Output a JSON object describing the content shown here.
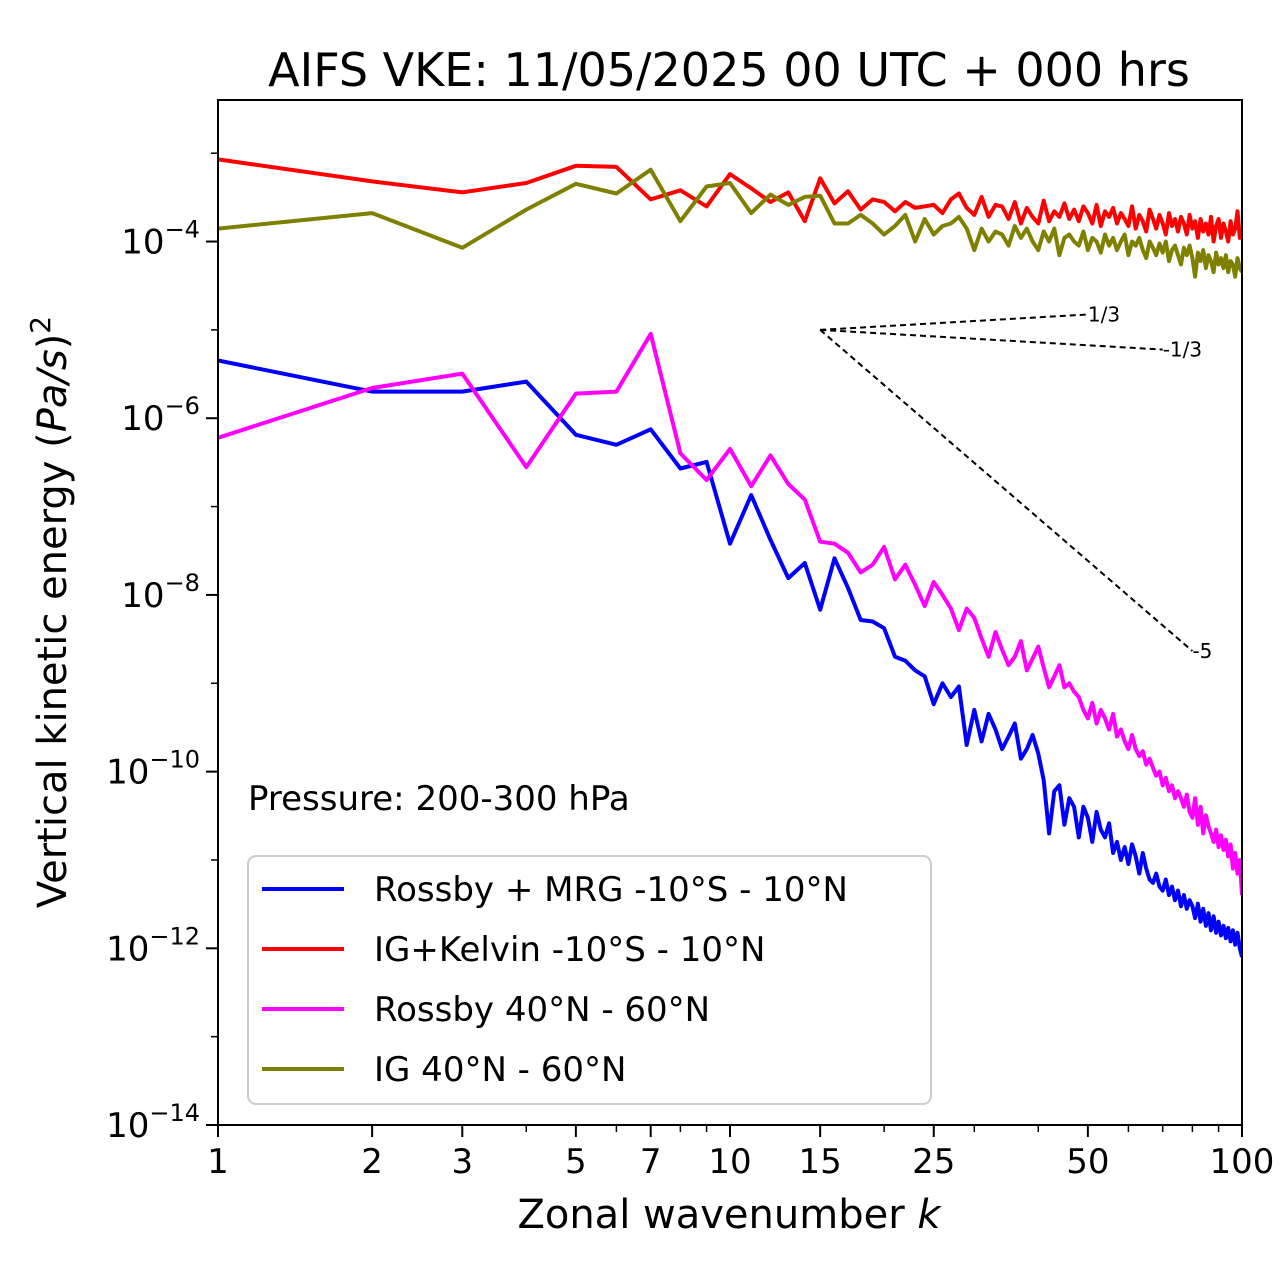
{
  "chart_data": {
    "type": "line",
    "title": "AIFS VKE: 11/05/2025 00 UTC + 000 hrs",
    "xlabel": "Zonal wavenumber ",
    "xlabel_italic": "k",
    "ylabel": "Vertical kinetic energy (",
    "ylabel_italic": "Pa/s",
    "ylabel_end": ")",
    "ylabel_power": "2",
    "x_scale": "log",
    "y_scale": "log",
    "xlim": [
      1,
      100
    ],
    "ylim": [
      1e-14,
      0.004
    ],
    "x_ticks": [
      {
        "value": 1,
        "label": "1"
      },
      {
        "value": 2,
        "label": "2"
      },
      {
        "value": 3,
        "label": "3"
      },
      {
        "value": 5,
        "label": "5"
      },
      {
        "value": 7,
        "label": "7"
      },
      {
        "value": 10,
        "label": "10"
      },
      {
        "value": 15,
        "label": "15"
      },
      {
        "value": 25,
        "label": "25"
      },
      {
        "value": 50,
        "label": "50"
      },
      {
        "value": 100,
        "label": "100"
      }
    ],
    "y_ticks": [
      {
        "exp": -4,
        "base": "10",
        "power": "−4"
      },
      {
        "exp": -6,
        "base": "10",
        "power": "−6"
      },
      {
        "exp": -8,
        "base": "10",
        "power": "−8"
      },
      {
        "exp": -10,
        "base": "10",
        "power": "−10"
      },
      {
        "exp": -12,
        "base": "10",
        "power": "−12"
      },
      {
        "exp": -14,
        "base": "10",
        "power": "−14"
      }
    ],
    "annotation": "Pressure: 200-300 hPa",
    "grid": false,
    "legend_position": "lower-left",
    "series": [
      {
        "name": "Rossby + MRG -10°S - 10°N",
        "color": "#0000ff",
        "x": [
          1,
          2,
          3,
          4,
          5,
          6,
          7,
          8,
          9,
          10,
          11,
          12,
          13,
          14,
          15,
          16,
          17,
          18,
          19,
          20,
          21,
          22,
          23,
          24,
          25,
          26,
          27,
          28,
          29,
          30,
          31,
          32,
          33,
          34,
          35,
          36,
          37,
          38,
          39,
          40,
          41,
          42,
          43,
          44,
          45,
          46,
          47,
          48,
          49,
          50,
          51,
          52,
          53,
          54,
          55,
          56,
          57,
          58,
          59,
          60,
          61,
          62,
          63,
          64,
          65,
          66,
          67,
          68,
          69,
          70,
          71,
          72,
          73,
          74,
          75,
          76,
          77,
          78,
          79,
          80,
          81,
          82,
          83,
          84,
          85,
          86,
          87,
          88,
          89,
          90,
          91,
          92,
          93,
          94,
          95,
          96,
          97,
          98,
          99,
          100
        ],
        "y": [
          4.5e-06,
          2e-06,
          2e-06,
          2.6e-06,
          6.5e-07,
          5e-07,
          7.5e-07,
          2.7e-07,
          3.2e-07,
          3.8e-08,
          1.35e-07,
          4.2e-08,
          1.55e-08,
          2.3e-08,
          6.8e-09,
          2.6e-08,
          1.2e-08,
          5.2e-09,
          5e-09,
          4.2e-09,
          2e-09,
          1.8e-09,
          1.4e-09,
          1.2e-09,
          5.8e-10,
          1e-09,
          7e-10,
          9.2e-10,
          2e-10,
          5e-10,
          2.2e-10,
          4.5e-10,
          3e-10,
          1.8e-10,
          2.5e-10,
          3.5e-10,
          1.4e-10,
          1.8e-10,
          2.6e-10,
          1.6e-10,
          8e-11,
          2e-11,
          6e-11,
          7e-11,
          2.5e-11,
          5e-11,
          4e-11,
          1.8e-11,
          4e-11,
          3e-11,
          1.6e-11,
          3.5e-11,
          2.2e-11,
          1.8e-11,
          2.6e-11,
          1.2e-11,
          1.6e-11,
          1e-11,
          1.4e-11,
          9e-12,
          1.5e-11,
          1.1e-11,
          7e-12,
          1.2e-11,
          8e-12,
          6e-12,
          5.5e-12,
          7e-12,
          5e-12,
          4.5e-12,
          6e-12,
          4e-12,
          5e-12,
          3.5e-12,
          4.5e-12,
          3e-12,
          4e-12,
          2.8e-12,
          3.5e-12,
          3e-12,
          2.2e-12,
          3.2e-12,
          2e-12,
          2.8e-12,
          1.8e-12,
          2.5e-12,
          1.6e-12,
          2.3e-12,
          1.5e-12,
          2e-12,
          1.4e-12,
          1.8e-12,
          1.3e-12,
          1.7e-12,
          1.2e-12,
          1.6e-12,
          1.1e-12,
          1.5e-12,
          1e-12,
          8e-13
        ]
      },
      {
        "name": "IG+Kelvin -10°S - 10°N",
        "color": "#ff0000",
        "x": [
          1,
          2,
          3,
          4,
          5,
          6,
          7,
          8,
          9,
          10,
          11,
          12,
          13,
          14,
          15,
          16,
          17,
          18,
          19,
          20,
          21,
          22,
          23,
          24,
          25,
          26,
          27,
          28,
          29,
          30,
          31,
          32,
          33,
          34,
          35,
          36,
          37,
          38,
          39,
          40,
          41,
          42,
          43,
          44,
          45,
          46,
          47,
          48,
          49,
          50,
          51,
          52,
          53,
          54,
          55,
          56,
          57,
          58,
          59,
          60,
          61,
          62,
          63,
          64,
          65,
          66,
          67,
          68,
          69,
          70,
          71,
          72,
          73,
          74,
          75,
          76,
          77,
          78,
          79,
          80,
          81,
          82,
          83,
          84,
          85,
          86,
          87,
          88,
          89,
          90,
          91,
          92,
          93,
          94,
          95,
          96,
          97,
          98,
          99,
          100
        ],
        "y": [
          0.00085,
          0.00048,
          0.00036,
          0.00046,
          0.00072,
          0.0007,
          0.0003,
          0.00038,
          0.00025,
          0.00058,
          0.0004,
          0.00028,
          0.00036,
          0.00017,
          0.00052,
          0.00027,
          0.00037,
          0.00023,
          0.0003,
          0.00028,
          0.00022,
          0.00028,
          0.00024,
          0.00025,
          0.00026,
          0.00021,
          0.0003,
          0.00035,
          0.00024,
          0.0002,
          0.00032,
          0.00019,
          0.00026,
          0.00025,
          0.00018,
          0.00028,
          0.00016,
          0.00024,
          0.00019,
          0.00016,
          0.00029,
          0.00017,
          0.00022,
          0.00019,
          0.00027,
          0.00018,
          0.00023,
          0.00017,
          0.00025,
          0.00021,
          0.00016,
          0.00026,
          0.00015,
          0.00022,
          0.00019,
          0.00024,
          0.00016,
          0.00021,
          0.00018,
          0.00015,
          0.00025,
          0.00014,
          0.0002,
          0.00017,
          0.00013,
          0.00023,
          0.00018,
          0.00014,
          0.0002,
          0.00016,
          0.00012,
          0.00021,
          0.00015,
          0.00018,
          0.00013,
          0.00019,
          0.00016,
          0.00012,
          0.0002,
          0.00014,
          0.00017,
          0.00011,
          0.00018,
          0.00013,
          0.00016,
          0.00012,
          0.00019,
          0.0001,
          0.00015,
          0.00018,
          0.00011,
          0.00016,
          0.00013,
          0.0001,
          0.00017,
          0.00012,
          0.00014,
          0.00022,
          0.00011,
          0.00013
        ]
      },
      {
        "name": "Rossby 40°N - 60°N",
        "color": "#ff00ff",
        "x": [
          1,
          2,
          3,
          4,
          5,
          6,
          7,
          8,
          9,
          10,
          11,
          12,
          13,
          14,
          15,
          16,
          17,
          18,
          19,
          20,
          21,
          22,
          23,
          24,
          25,
          26,
          27,
          28,
          29,
          30,
          31,
          32,
          33,
          34,
          35,
          36,
          37,
          38,
          39,
          40,
          41,
          42,
          43,
          44,
          45,
          46,
          47,
          48,
          49,
          50,
          51,
          52,
          53,
          54,
          55,
          56,
          57,
          58,
          59,
          60,
          61,
          62,
          63,
          64,
          65,
          66,
          67,
          68,
          69,
          70,
          71,
          72,
          73,
          74,
          75,
          76,
          77,
          78,
          79,
          80,
          81,
          82,
          83,
          84,
          85,
          86,
          87,
          88,
          89,
          90,
          91,
          92,
          93,
          94,
          95,
          96,
          97,
          98,
          99,
          100
        ],
        "y": [
          6e-07,
          2.2e-06,
          3.2e-06,
          2.8e-07,
          1.9e-06,
          2e-06,
          9e-06,
          4e-07,
          2e-07,
          4.5e-07,
          1.7e-07,
          3.8e-07,
          1.8e-07,
          1.2e-07,
          4e-08,
          3.8e-08,
          3e-08,
          1.8e-08,
          2.2e-08,
          3.5e-08,
          1.5e-08,
          2.2e-08,
          1.3e-08,
          7.5e-09,
          1.4e-08,
          1e-08,
          7e-09,
          4e-09,
          7e-09,
          5.5e-09,
          3.2e-09,
          2e-09,
          3.8e-09,
          2.4e-09,
          1.6e-09,
          2e-09,
          3e-09,
          1.4e-09,
          1.9e-09,
          2.6e-09,
          1.5e-09,
          9e-10,
          1.2e-09,
          1.6e-09,
          9e-10,
          1e-09,
          8e-10,
          7e-10,
          5e-10,
          4e-10,
          6e-10,
          3.5e-10,
          5e-10,
          4e-10,
          3e-10,
          4.5e-10,
          2.5e-10,
          3e-10,
          2.2e-10,
          1.8e-10,
          2.6e-10,
          1.8e-10,
          1.5e-10,
          1.7e-10,
          1.2e-10,
          1.4e-10,
          1.1e-10,
          9e-11,
          1e-10,
          7e-11,
          8.5e-11,
          6e-11,
          7e-11,
          5e-11,
          6e-11,
          5e-11,
          4e-11,
          5.5e-11,
          3.5e-11,
          3e-11,
          5e-11,
          2.5e-11,
          4e-11,
          2e-11,
          3.2e-11,
          2.4e-11,
          2e-11,
          1.6e-11,
          2.2e-11,
          1.4e-11,
          1.9e-11,
          1.3e-11,
          1.7e-11,
          1.1e-11,
          1.5e-11,
          8e-12,
          1.2e-11,
          7e-12,
          1e-11,
          4e-12
        ]
      },
      {
        "name": "IG 40°N - 60°N",
        "color": "#808000",
        "x": [
          1,
          2,
          3,
          4,
          5,
          6,
          7,
          8,
          9,
          10,
          11,
          12,
          13,
          14,
          15,
          16,
          17,
          18,
          19,
          20,
          21,
          22,
          23,
          24,
          25,
          26,
          27,
          28,
          29,
          30,
          31,
          32,
          33,
          34,
          35,
          36,
          37,
          38,
          39,
          40,
          41,
          42,
          43,
          44,
          45,
          46,
          47,
          48,
          49,
          50,
          51,
          52,
          53,
          54,
          55,
          56,
          57,
          58,
          59,
          60,
          61,
          62,
          63,
          64,
          65,
          66,
          67,
          68,
          69,
          70,
          71,
          72,
          73,
          74,
          75,
          76,
          77,
          78,
          79,
          80,
          81,
          82,
          83,
          84,
          85,
          86,
          87,
          88,
          89,
          90,
          91,
          92,
          93,
          94,
          95,
          96,
          97,
          98,
          99,
          100
        ],
        "y": [
          0.00014,
          0.00021,
          8.5e-05,
          0.00023,
          0.00045,
          0.00035,
          0.00065,
          0.00017,
          0.00042,
          0.00046,
          0.00021,
          0.00034,
          0.00026,
          0.00032,
          0.00033,
          0.00016,
          0.00016,
          0.0002,
          0.00016,
          0.00012,
          0.00015,
          0.0002,
          0.0001,
          0.00018,
          0.00012,
          0.00015,
          0.00016,
          0.00019,
          0.00014,
          8e-05,
          0.00014,
          0.0001,
          0.00013,
          0.00012,
          9e-05,
          0.00015,
          0.00011,
          0.00014,
          0.0001,
          8e-05,
          0.00013,
          0.0001,
          0.00014,
          7e-05,
          0.00011,
          0.00012,
          0.0001,
          9e-05,
          0.00013,
          8e-05,
          0.00011,
          0.0001,
          7.5e-05,
          0.00012,
          9e-05,
          0.00011,
          8e-05,
          0.0001,
          0.00012,
          7e-05,
          0.0001,
          9e-05,
          0.00011,
          8e-05,
          6.5e-05,
          0.0001,
          8.5e-05,
          7e-05,
          9.5e-05,
          7.5e-05,
          0.0001,
          6e-05,
          8e-05,
          9e-05,
          7e-05,
          5.5e-05,
          8.5e-05,
          7e-05,
          9e-05,
          6.5e-05,
          4e-05,
          7.5e-05,
          6e-05,
          8e-05,
          5e-05,
          7e-05,
          6e-05,
          4.5e-05,
          7.5e-05,
          5.5e-05,
          6.5e-05,
          5e-05,
          7e-05,
          4.5e-05,
          6e-05,
          5.5e-05,
          4e-05,
          6.5e-05,
          5e-05,
          4.5e-05
        ]
      }
    ],
    "reference_slopes": [
      {
        "label": "1/3",
        "slope": 0.3333333,
        "x": [
          15,
          50
        ],
        "y0": 1e-05
      },
      {
        "label": "-1/3",
        "slope": -0.3333333,
        "x": [
          15,
          70
        ],
        "y0": 1e-05
      },
      {
        "label": "-5",
        "slope": -5,
        "x": [
          15,
          80
        ],
        "y0": 1e-05
      }
    ]
  }
}
